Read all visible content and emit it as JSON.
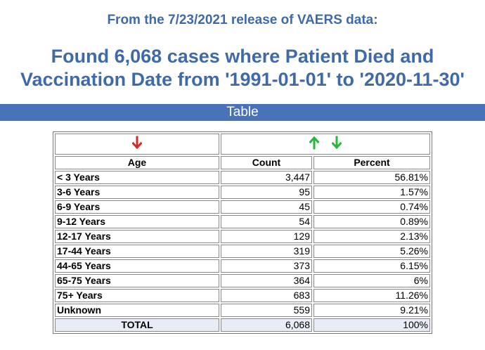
{
  "subtitle": "From the 7/23/2021 release of VAERS data:",
  "headline_line1": "Found 6,068 cases where Patient Died and",
  "headline_line2": "Vaccination Date from '1991-01-01' to '2020-11-30'",
  "section_bar": "Table",
  "colors": {
    "heading": "#3f6aa8",
    "bar": "#4a72b8",
    "down_arrow_red": "#d42a2a",
    "arrow_green": "#2bb63a",
    "total_row": "#e7ecf7"
  },
  "table": {
    "headers": {
      "age": "Age",
      "count": "Count",
      "percent": "Percent"
    },
    "rows": [
      {
        "age": "< 3 Years",
        "count": "3,447",
        "percent": "56.81%"
      },
      {
        "age": "3-6 Years",
        "count": "95",
        "percent": "1.57%"
      },
      {
        "age": "6-9 Years",
        "count": "45",
        "percent": "0.74%"
      },
      {
        "age": "9-12 Years",
        "count": "54",
        "percent": "0.89%"
      },
      {
        "age": "12-17 Years",
        "count": "129",
        "percent": "2.13%"
      },
      {
        "age": "17-44 Years",
        "count": "319",
        "percent": "5.26%"
      },
      {
        "age": "44-65 Years",
        "count": "373",
        "percent": "6.15%"
      },
      {
        "age": "65-75 Years",
        "count": "364",
        "percent": "6%"
      },
      {
        "age": "75+ Years",
        "count": "683",
        "percent": "11.26%"
      },
      {
        "age": "Unknown",
        "count": "559",
        "percent": "9.21%"
      }
    ],
    "total": {
      "label": "TOTAL",
      "count": "6,068",
      "percent": "100%"
    }
  }
}
